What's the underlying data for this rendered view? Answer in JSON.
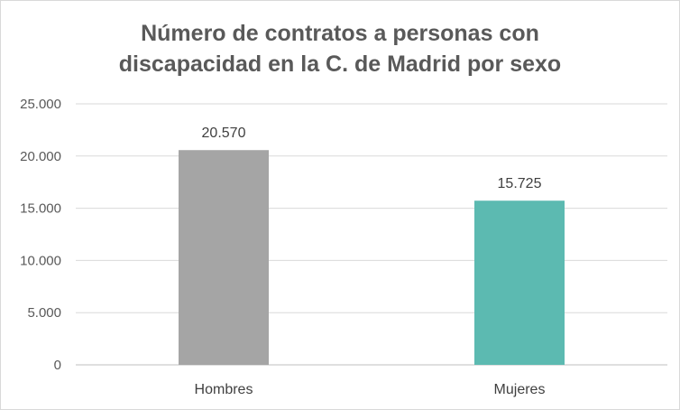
{
  "chart_data": {
    "type": "bar",
    "title_lines": [
      "Número de contratos a personas con",
      "discapacidad en la C. de Madrid por sexo"
    ],
    "categories": [
      "Hombres",
      "Mujeres"
    ],
    "values": [
      20570,
      15725
    ],
    "value_labels": [
      "20.570",
      "15.725"
    ],
    "colors": [
      "#a5a5a5",
      "#5cbab1"
    ],
    "ylim": [
      0,
      25000
    ],
    "yticks": [
      0,
      5000,
      10000,
      15000,
      20000,
      25000
    ],
    "ytick_labels": [
      "0",
      "5.000",
      "10.000",
      "15.000",
      "20.000",
      "25.000"
    ],
    "grid": true,
    "legend": "none"
  }
}
